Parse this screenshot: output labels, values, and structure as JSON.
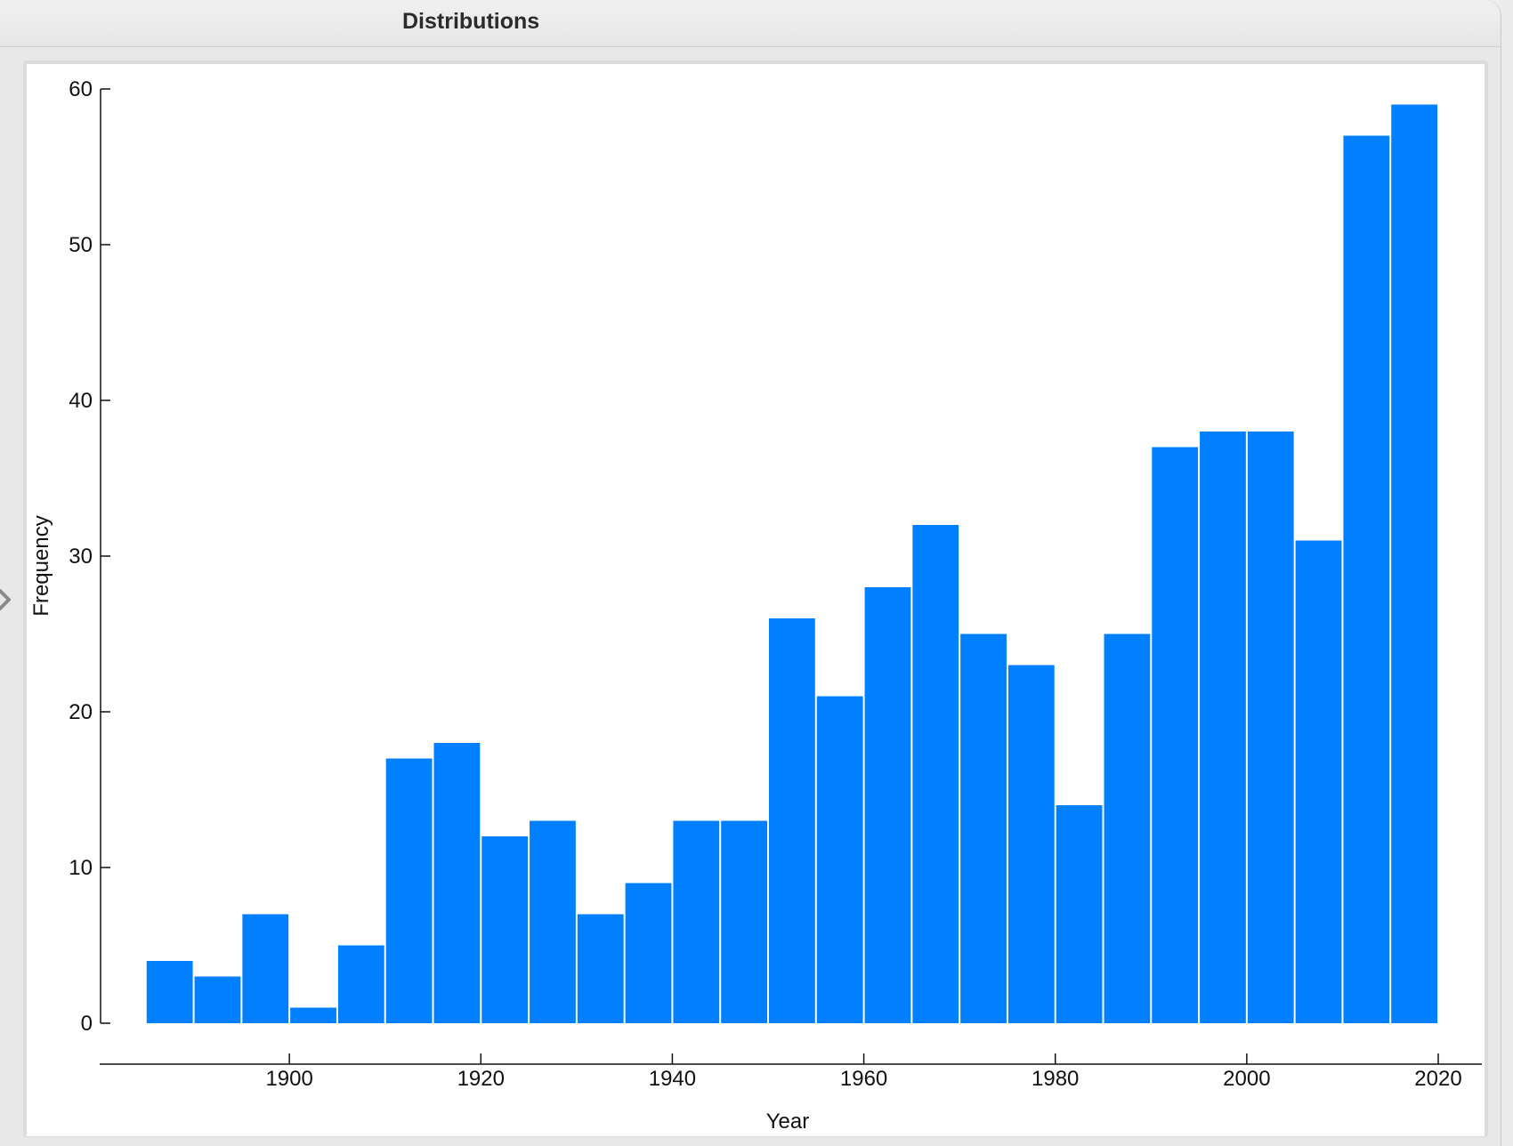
{
  "window": {
    "title": "Distributions"
  },
  "chart_data": {
    "type": "bar",
    "subtype": "histogram",
    "xlabel": "Year",
    "ylabel": "Frequency",
    "bin_width": 5,
    "bin_starts": [
      1885,
      1890,
      1895,
      1900,
      1905,
      1910,
      1915,
      1920,
      1925,
      1930,
      1935,
      1940,
      1945,
      1950,
      1955,
      1960,
      1965,
      1970,
      1975,
      1980,
      1985,
      1990,
      1995,
      2000,
      2005,
      2010,
      2015
    ],
    "values": [
      4,
      3,
      7,
      1,
      5,
      17,
      18,
      12,
      13,
      7,
      9,
      13,
      13,
      26,
      21,
      28,
      32,
      25,
      23,
      14,
      25,
      37,
      38,
      38,
      31,
      57,
      59
    ],
    "xlim": [
      1880,
      2020
    ],
    "ylim": [
      0,
      60
    ],
    "xticks": [
      "1900",
      "1920",
      "1940",
      "1960",
      "1980",
      "2000",
      "2020"
    ],
    "yticks": [
      "0",
      "10",
      "20",
      "30",
      "40",
      "50",
      "60"
    ],
    "bar_color": "#0080ff",
    "grid": false
  }
}
